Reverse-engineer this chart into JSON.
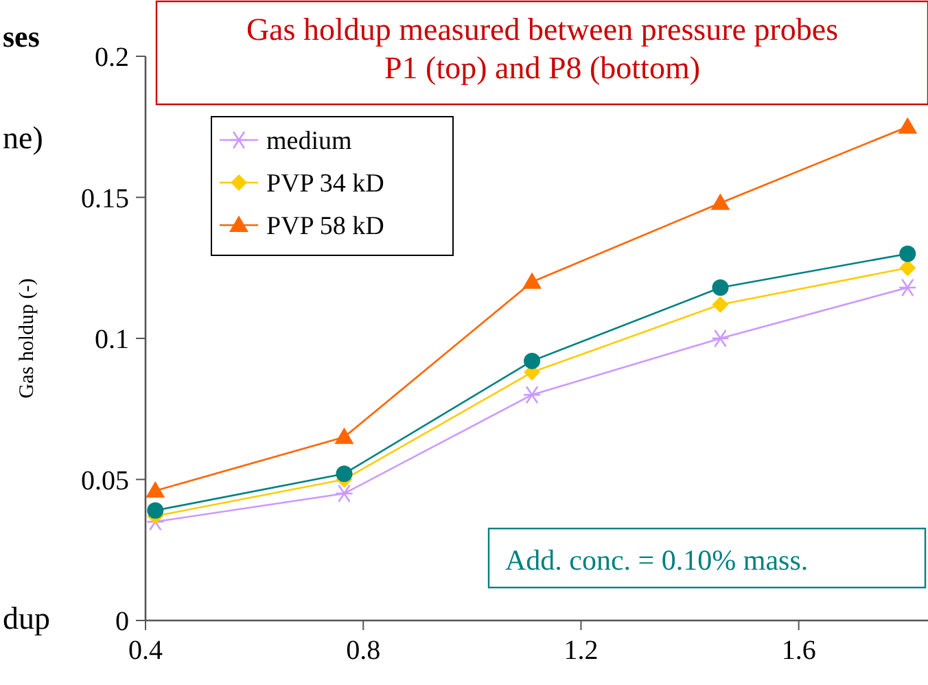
{
  "chart_data": {
    "type": "line",
    "title": "Gas holdup measured between pressure probes\nP1 (top) and P8 (bottom)",
    "ylabel": "Gas holdup (-)",
    "xlim": [
      0.4,
      1.84
    ],
    "xticks": [
      {
        "value": 0.4,
        "label": "0.4"
      },
      {
        "value": 0.8,
        "label": "0.8"
      },
      {
        "value": 1.2,
        "label": "1.2"
      },
      {
        "value": 1.6,
        "label": "1.6"
      }
    ],
    "ylim": [
      0,
      0.2
    ],
    "yticks": [
      {
        "value": 0,
        "label": "0"
      },
      {
        "value": 0.05,
        "label": "0.05"
      },
      {
        "value": 0.1,
        "label": "0.1"
      },
      {
        "value": 0.15,
        "label": "0.15"
      },
      {
        "value": 0.2,
        "label": "0.2"
      }
    ],
    "x": [
      0.418,
      0.765,
      1.11,
      1.456,
      1.8
    ],
    "series": [
      {
        "name": "medium",
        "color": "#cc99ff",
        "marker": "cross",
        "values": [
          0.035,
          0.045,
          0.08,
          0.1,
          0.118
        ]
      },
      {
        "name": "PVP 34 kD",
        "color": "#ffcc00",
        "marker": "diamond",
        "values": [
          0.037,
          0.05,
          0.088,
          0.112,
          0.125
        ]
      },
      {
        "name": "PVP 58 kD",
        "color": "#ff6600",
        "marker": "triangle",
        "values": [
          0.046,
          0.065,
          0.12,
          0.148,
          0.175
        ]
      },
      {
        "color": "#008080",
        "marker": "circle",
        "values": [
          0.039,
          0.052,
          0.092,
          0.118,
          0.13
        ]
      }
    ],
    "legend": "top left",
    "grid": false,
    "annotations": [
      "Add. conc. = 0.10% mass.",
      "ses",
      "ne)",
      "dup"
    ]
  }
}
